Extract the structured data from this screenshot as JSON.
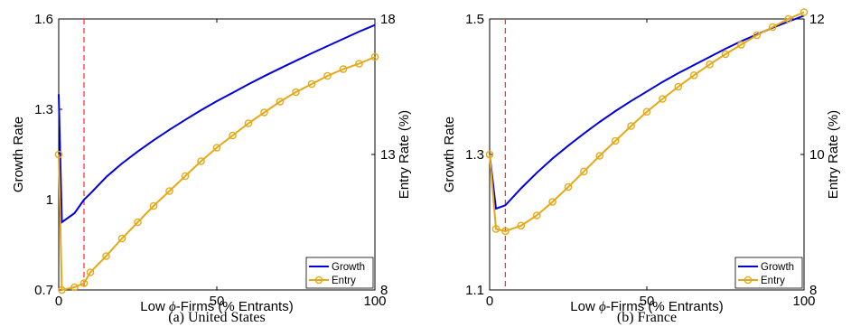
{
  "chart_data": [
    {
      "type": "line",
      "caption": "(a)  United States",
      "xlabel_pre": "Low ",
      "xlabel_phi": "ϕ",
      "xlabel_post": "-Firms (% Entrants)",
      "ylabel_left": "Growth Rate",
      "ylabel_right": "Entry Rate (%)",
      "xlim": [
        0,
        100
      ],
      "xticks": [
        0,
        50,
        100
      ],
      "ylim_left": [
        0.7,
        1.6
      ],
      "yticks_left": [
        "0.7",
        "1",
        "1.3",
        "1.6"
      ],
      "ylim_right": [
        8,
        18
      ],
      "yticks_right": [
        "8",
        "13",
        "18"
      ],
      "cutoff_x": 8,
      "grid": false,
      "legend_placement": "bottom-right",
      "series": [
        {
          "name": "Growth",
          "axis": "left",
          "color": "#0000dd",
          "marker": "none",
          "x": [
            0,
            1,
            5,
            8,
            10,
            15,
            20,
            25,
            30,
            35,
            40,
            45,
            50,
            55,
            60,
            65,
            70,
            75,
            80,
            85,
            90,
            95,
            100
          ],
          "values": [
            1.35,
            0.925,
            0.955,
            1.0,
            1.02,
            1.075,
            1.12,
            1.16,
            1.197,
            1.232,
            1.265,
            1.297,
            1.327,
            1.355,
            1.383,
            1.41,
            1.436,
            1.461,
            1.486,
            1.51,
            1.534,
            1.558,
            1.58
          ]
        },
        {
          "name": "Entry",
          "axis": "right",
          "color": "#e6a817",
          "marker": "circle",
          "x": [
            0,
            1,
            5,
            8,
            10,
            15,
            20,
            25,
            30,
            35,
            40,
            45,
            50,
            55,
            60,
            65,
            70,
            75,
            80,
            85,
            90,
            95,
            100
          ],
          "values": [
            13.0,
            8.0,
            8.1,
            8.25,
            8.65,
            9.25,
            9.9,
            10.5,
            11.1,
            11.65,
            12.2,
            12.75,
            13.25,
            13.7,
            14.15,
            14.55,
            14.95,
            15.3,
            15.6,
            15.9,
            16.15,
            16.35,
            16.6
          ]
        }
      ]
    },
    {
      "type": "line",
      "caption": "(b)  France",
      "xlabel_pre": "Low ",
      "xlabel_phi": "ϕ",
      "xlabel_post": "-Firms (% Entrants)",
      "ylabel_left": "Growth Rate",
      "ylabel_right": "Entry Rate (%)",
      "xlim": [
        0,
        100
      ],
      "xticks": [
        0,
        50,
        100
      ],
      "ylim_left": [
        1.1,
        1.5
      ],
      "yticks_left": [
        "1.1",
        "1.3",
        "1.5"
      ],
      "ylim_right": [
        8,
        12
      ],
      "yticks_right": [
        "8",
        "10",
        "12"
      ],
      "cutoff_x": 5,
      "grid": false,
      "legend_placement": "bottom-right",
      "series": [
        {
          "name": "Growth",
          "axis": "left",
          "color": "#0000dd",
          "marker": "none",
          "x": [
            0,
            2,
            5,
            10,
            15,
            20,
            25,
            30,
            35,
            40,
            45,
            50,
            55,
            60,
            65,
            70,
            75,
            80,
            85,
            90,
            95,
            100
          ],
          "values": [
            1.3,
            1.22,
            1.225,
            1.25,
            1.273,
            1.294,
            1.313,
            1.331,
            1.348,
            1.364,
            1.379,
            1.393,
            1.407,
            1.42,
            1.432,
            1.444,
            1.456,
            1.467,
            1.477,
            1.487,
            1.496,
            1.505
          ]
        },
        {
          "name": "Entry",
          "axis": "right",
          "color": "#e6a817",
          "marker": "circle",
          "x": [
            0,
            2,
            5,
            10,
            15,
            20,
            25,
            30,
            35,
            40,
            45,
            50,
            55,
            60,
            65,
            70,
            75,
            80,
            85,
            90,
            95,
            100
          ],
          "values": [
            10.0,
            8.9,
            8.87,
            8.95,
            9.1,
            9.3,
            9.52,
            9.75,
            9.98,
            10.2,
            10.42,
            10.63,
            10.82,
            11.0,
            11.17,
            11.33,
            11.48,
            11.62,
            11.76,
            11.88,
            12.0,
            12.1
          ]
        }
      ]
    }
  ]
}
